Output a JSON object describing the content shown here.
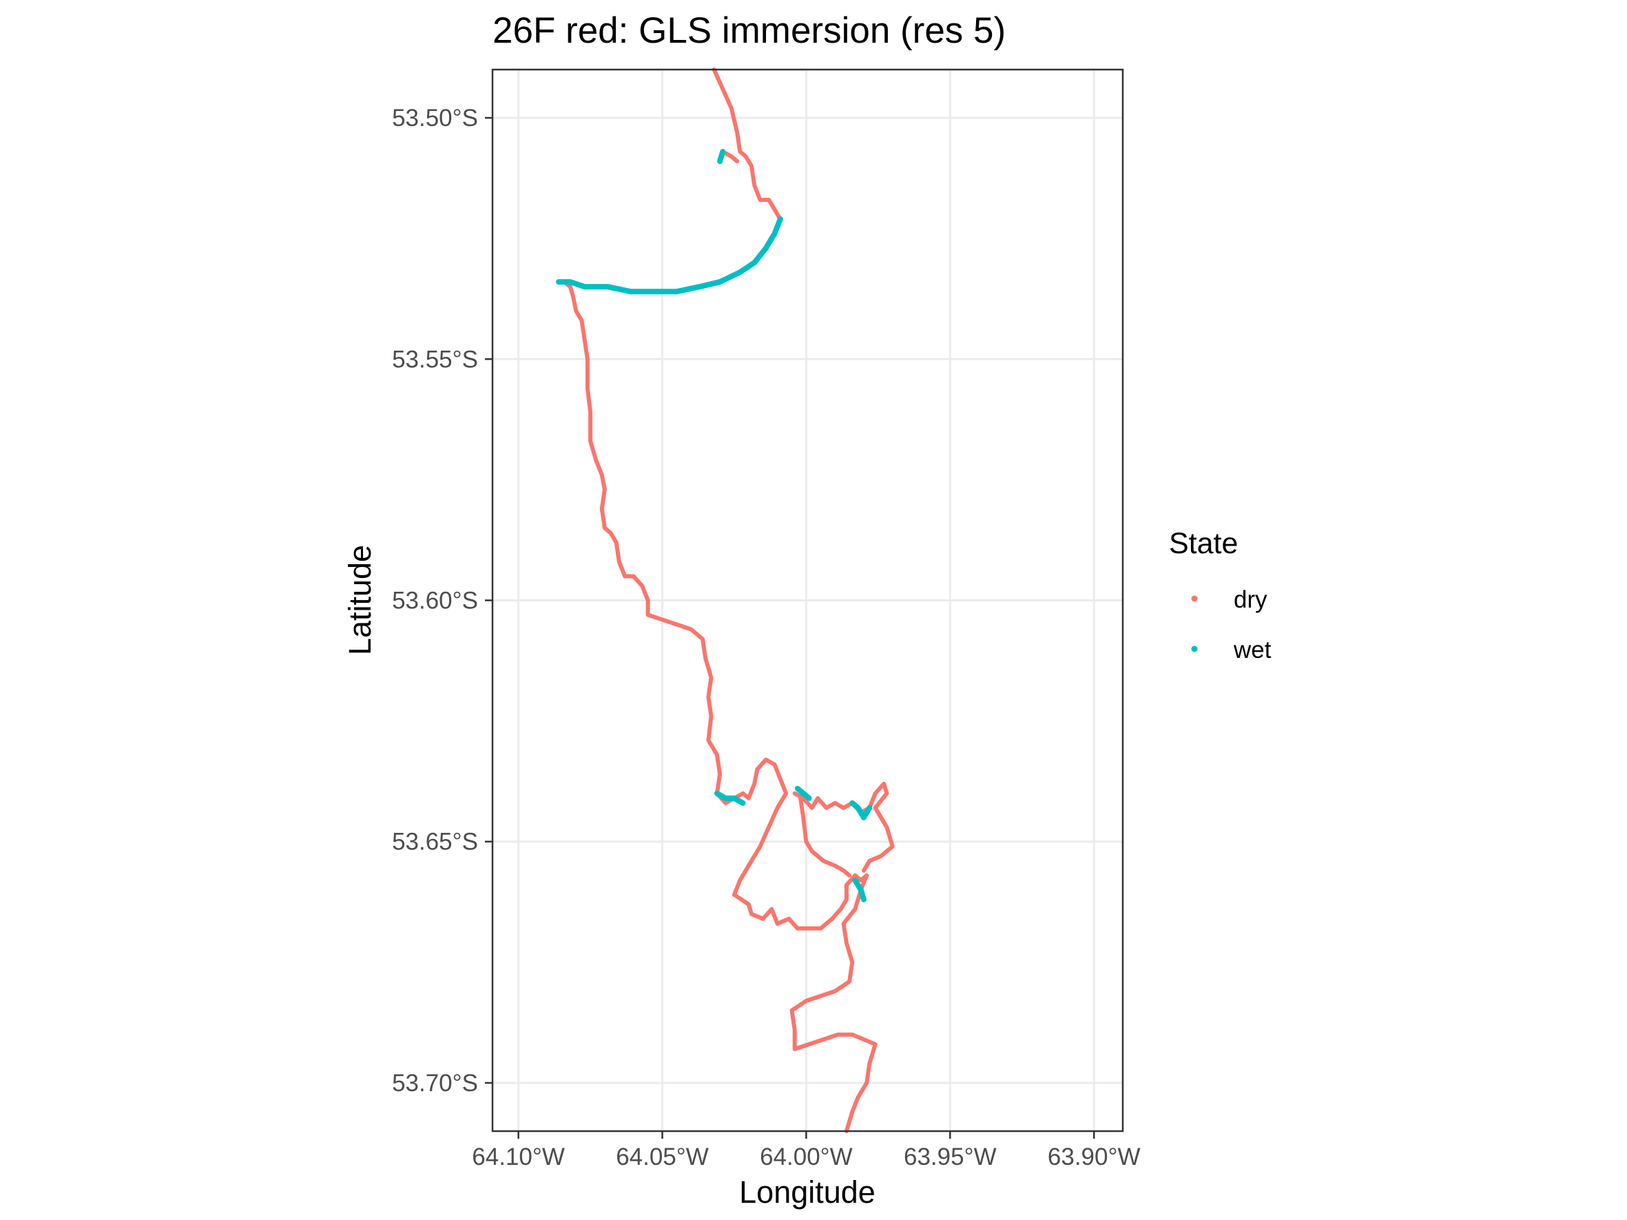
{
  "chart_data": {
    "type": "line",
    "title": "26F red: GLS immersion (res 5)",
    "xlabel": "Longitude",
    "ylabel": "Latitude",
    "xlim": [
      -64.109,
      -63.89
    ],
    "ylim": [
      -53.71,
      -53.49
    ],
    "xticks": [
      {
        "value": -64.1,
        "label": "64.10°W"
      },
      {
        "value": -64.05,
        "label": "64.05°W"
      },
      {
        "value": -64.0,
        "label": "64.00°W"
      },
      {
        "value": -63.95,
        "label": "63.95°W"
      },
      {
        "value": -63.9,
        "label": "63.90°W"
      }
    ],
    "yticks": [
      {
        "value": -53.5,
        "label": "53.50°S"
      },
      {
        "value": -53.55,
        "label": "53.55°S"
      },
      {
        "value": -53.6,
        "label": "53.60°S"
      },
      {
        "value": -53.65,
        "label": "53.65°S"
      },
      {
        "value": -53.7,
        "label": "53.70°S"
      }
    ],
    "grid": true,
    "legend": {
      "title": "State",
      "position": "right"
    },
    "series": [
      {
        "name": "dry",
        "color": "#F8766D",
        "segments": [
          [
            [
              -64.032,
              -53.49
            ],
            [
              -64.029,
              -53.494
            ],
            [
              -64.026,
              -53.498
            ],
            [
              -64.024,
              -53.503
            ],
            [
              -64.023,
              -53.507
            ],
            [
              -64.021,
              -53.508
            ],
            [
              -64.019,
              -53.51
            ],
            [
              -64.018,
              -53.514
            ],
            [
              -64.016,
              -53.517
            ],
            [
              -64.013,
              -53.517
            ],
            [
              -64.011,
              -53.519
            ],
            [
              -64.009,
              -53.521
            ]
          ],
          [
            [
              -64.029,
              -53.507
            ],
            [
              -64.026,
              -53.508
            ],
            [
              -64.024,
              -53.509
            ]
          ],
          [
            [
              -64.084,
              -53.534
            ],
            [
              -64.082,
              -53.535
            ],
            [
              -64.081,
              -53.537
            ],
            [
              -64.08,
              -53.54
            ],
            [
              -64.078,
              -53.542
            ],
            [
              -64.077,
              -53.546
            ],
            [
              -64.076,
              -53.55
            ],
            [
              -64.076,
              -53.556
            ],
            [
              -64.075,
              -53.561
            ],
            [
              -64.075,
              -53.567
            ],
            [
              -64.073,
              -53.571
            ],
            [
              -64.071,
              -53.574
            ],
            [
              -64.07,
              -53.577
            ],
            [
              -64.071,
              -53.581
            ],
            [
              -64.07,
              -53.585
            ],
            [
              -64.068,
              -53.586
            ],
            [
              -64.066,
              -53.588
            ],
            [
              -64.065,
              -53.592
            ],
            [
              -64.063,
              -53.595
            ],
            [
              -64.06,
              -53.595
            ],
            [
              -64.057,
              -53.597
            ],
            [
              -64.055,
              -53.6
            ],
            [
              -64.055,
              -53.603
            ],
            [
              -64.05,
              -53.604
            ],
            [
              -64.045,
              -53.605
            ],
            [
              -64.04,
              -53.606
            ],
            [
              -64.036,
              -53.608
            ],
            [
              -64.035,
              -53.612
            ],
            [
              -64.033,
              -53.616
            ],
            [
              -64.034,
              -53.62
            ],
            [
              -64.033,
              -53.624
            ],
            [
              -64.034,
              -53.629
            ],
            [
              -64.031,
              -53.632
            ],
            [
              -64.03,
              -53.636
            ],
            [
              -64.031,
              -53.64
            ],
            [
              -64.028,
              -53.642
            ],
            [
              -64.025,
              -53.641
            ],
            [
              -64.022,
              -53.64
            ],
            [
              -64.02,
              -53.641
            ],
            [
              -64.018,
              -53.638
            ],
            [
              -64.017,
              -53.635
            ],
            [
              -64.014,
              -53.633
            ],
            [
              -64.011,
              -53.634
            ],
            [
              -64.009,
              -53.637
            ],
            [
              -64.007,
              -53.64
            ],
            [
              -64.01,
              -53.643
            ],
            [
              -64.013,
              -53.647
            ],
            [
              -64.016,
              -53.651
            ],
            [
              -64.02,
              -53.655
            ],
            [
              -64.023,
              -53.658
            ],
            [
              -64.025,
              -53.661
            ],
            [
              -64.02,
              -53.663
            ],
            [
              -64.019,
              -53.665
            ],
            [
              -64.015,
              -53.666
            ],
            [
              -64.012,
              -53.664
            ],
            [
              -64.01,
              -53.667
            ],
            [
              -64.006,
              -53.666
            ],
            [
              -64.003,
              -53.668
            ],
            [
              -63.999,
              -53.668
            ],
            [
              -63.995,
              -53.668
            ],
            [
              -63.991,
              -53.666
            ],
            [
              -63.988,
              -53.664
            ],
            [
              -63.986,
              -53.662
            ],
            [
              -63.986,
              -53.659
            ],
            [
              -63.983,
              -53.657
            ],
            [
              -63.981,
              -53.658
            ],
            [
              -63.979,
              -53.657
            ],
            [
              -63.981,
              -53.66
            ],
            [
              -63.983,
              -53.664
            ],
            [
              -63.987,
              -53.667
            ],
            [
              -63.986,
              -53.671
            ],
            [
              -63.984,
              -53.675
            ],
            [
              -63.985,
              -53.679
            ],
            [
              -63.99,
              -53.681
            ],
            [
              -63.995,
              -53.682
            ],
            [
              -64.0,
              -53.683
            ],
            [
              -64.005,
              -53.685
            ],
            [
              -64.004,
              -53.689
            ],
            [
              -64.004,
              -53.693
            ],
            [
              -63.999,
              -53.692
            ],
            [
              -63.994,
              -53.691
            ],
            [
              -63.989,
              -53.69
            ],
            [
              -63.984,
              -53.69
            ],
            [
              -63.98,
              -53.691
            ],
            [
              -63.976,
              -53.692
            ],
            [
              -63.978,
              -53.696
            ],
            [
              -63.979,
              -53.7
            ],
            [
              -63.982,
              -53.703
            ],
            [
              -63.984,
              -53.706
            ],
            [
              -63.986,
              -53.71
            ]
          ],
          [
            [
              -64.004,
              -53.64
            ],
            [
              -64.001,
              -53.641
            ],
            [
              -63.998,
              -53.643
            ],
            [
              -63.996,
              -53.641
            ],
            [
              -63.993,
              -53.643
            ],
            [
              -63.99,
              -53.642
            ],
            [
              -63.987,
              -53.643
            ],
            [
              -63.984,
              -53.642
            ],
            [
              -63.981,
              -53.644
            ],
            [
              -63.978,
              -53.643
            ],
            [
              -63.976,
              -53.64
            ],
            [
              -63.973,
              -53.638
            ],
            [
              -63.972,
              -53.64
            ],
            [
              -63.976,
              -53.643
            ],
            [
              -63.974,
              -53.645
            ],
            [
              -63.972,
              -53.647
            ],
            [
              -63.971,
              -53.649
            ],
            [
              -63.97,
              -53.651
            ],
            [
              -63.974,
              -53.653
            ],
            [
              -63.978,
              -53.654
            ],
            [
              -63.98,
              -53.656
            ]
          ],
          [
            [
              -64.002,
              -53.641
            ],
            [
              -64.001,
              -53.645
            ],
            [
              -64.0,
              -53.65
            ],
            [
              -63.998,
              -53.652
            ],
            [
              -63.994,
              -53.654
            ],
            [
              -63.99,
              -53.655
            ],
            [
              -63.987,
              -53.656
            ],
            [
              -63.985,
              -53.657
            ]
          ]
        ]
      },
      {
        "name": "wet",
        "color": "#00BFC4",
        "segments": [
          [
            [
              -64.009,
              -53.521
            ],
            [
              -64.011,
              -53.524
            ],
            [
              -64.014,
              -53.527
            ],
            [
              -64.018,
              -53.53
            ],
            [
              -64.023,
              -53.532
            ],
            [
              -64.03,
              -53.534
            ],
            [
              -64.037,
              -53.535
            ],
            [
              -64.045,
              -53.536
            ],
            [
              -64.053,
              -53.536
            ],
            [
              -64.061,
              -53.536
            ],
            [
              -64.069,
              -53.535
            ],
            [
              -64.077,
              -53.535
            ],
            [
              -64.082,
              -53.534
            ],
            [
              -64.086,
              -53.534
            ]
          ],
          [
            [
              -64.03,
              -53.509
            ],
            [
              -64.029,
              -53.507
            ]
          ],
          [
            [
              -64.031,
              -53.64
            ],
            [
              -64.028,
              -53.641
            ],
            [
              -64.025,
              -53.641
            ],
            [
              -64.022,
              -53.642
            ]
          ],
          [
            [
              -64.003,
              -53.639
            ],
            [
              -64.001,
              -53.64
            ],
            [
              -63.999,
              -53.641
            ]
          ],
          [
            [
              -63.984,
              -53.642
            ],
            [
              -63.982,
              -53.643
            ],
            [
              -63.98,
              -53.645
            ],
            [
              -63.978,
              -53.643
            ]
          ],
          [
            [
              -63.983,
              -53.658
            ],
            [
              -63.981,
              -53.66
            ],
            [
              -63.98,
              -53.662
            ]
          ]
        ]
      }
    ]
  }
}
